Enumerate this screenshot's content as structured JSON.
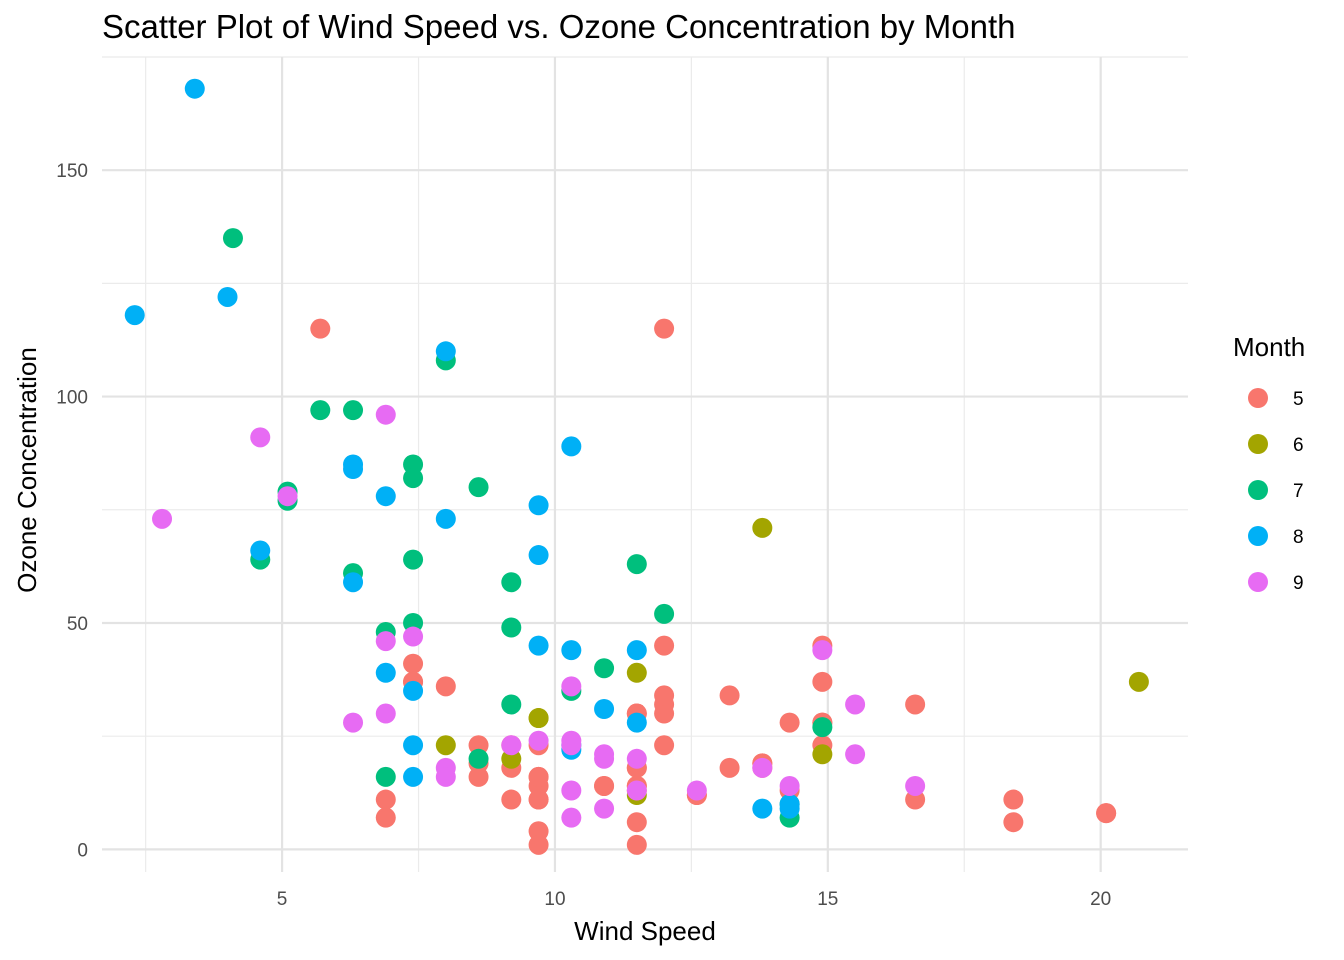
{
  "chart_data": {
    "type": "scatter",
    "title": "Scatter Plot of Wind Speed vs. Ozone Concentration by Month",
    "xlabel": "Wind Speed",
    "ylabel": "Ozone Concentration",
    "xlim": [
      1.7,
      21.6
    ],
    "ylim": [
      -5,
      175
    ],
    "x_ticks": [
      5,
      10,
      15,
      20
    ],
    "y_ticks": [
      0,
      50,
      100,
      150
    ],
    "grid": true,
    "legend": {
      "title": "Month",
      "position": "right"
    },
    "series": [
      {
        "name": "5",
        "color": "#F8766D",
        "points": [
          [
            7.4,
            41
          ],
          [
            8.0,
            36
          ],
          [
            12.6,
            12
          ],
          [
            11.5,
            18
          ],
          [
            14.3,
            28
          ],
          [
            14.9,
            23
          ],
          [
            8.6,
            19
          ],
          [
            13.8,
            19
          ],
          [
            20.1,
            8
          ],
          [
            8.6,
            16
          ],
          [
            6.9,
            11
          ],
          [
            9.7,
            14
          ],
          [
            9.2,
            18
          ],
          [
            10.9,
            14
          ],
          [
            13.2,
            34
          ],
          [
            11.5,
            6
          ],
          [
            12.0,
            30
          ],
          [
            18.4,
            11
          ],
          [
            11.5,
            1
          ],
          [
            9.7,
            11
          ],
          [
            9.7,
            4
          ],
          [
            16.6,
            32
          ],
          [
            9.7,
            23
          ],
          [
            12.0,
            45
          ],
          [
            12.0,
            115
          ],
          [
            14.9,
            37
          ],
          [
            5.7,
            115
          ],
          [
            7.4,
            37
          ],
          [
            9.7,
            16
          ],
          [
            8.6,
            23
          ],
          [
            13.8,
            18
          ],
          [
            11.5,
            14
          ],
          [
            9.7,
            1
          ],
          [
            11.5,
            30
          ],
          [
            13.8,
            19
          ],
          [
            14.9,
            45
          ],
          [
            14.9,
            28
          ],
          [
            9.7,
            11
          ],
          [
            12.0,
            32
          ],
          [
            12.0,
            34
          ],
          [
            18.4,
            6
          ],
          [
            20.1,
            8
          ],
          [
            16.6,
            11
          ],
          [
            9.2,
            11
          ],
          [
            10.9,
            14
          ],
          [
            12.6,
            12
          ],
          [
            13.2,
            18
          ],
          [
            7.4,
            37
          ],
          [
            11.5,
            30
          ],
          [
            11.5,
            13
          ],
          [
            11.5,
            14
          ],
          [
            12.0,
            23
          ],
          [
            6.9,
            7
          ],
          [
            14.9,
            28
          ],
          [
            11.5,
            18
          ],
          [
            14.3,
            13
          ],
          [
            9.7,
            16
          ],
          [
            9.2,
            23
          ]
        ]
      },
      {
        "name": "6",
        "color": "#A3A500",
        "points": [
          [
            13.8,
            71
          ],
          [
            11.5,
            39
          ],
          [
            9.7,
            29
          ],
          [
            8.0,
            23
          ],
          [
            11.5,
            12
          ],
          [
            14.9,
            21
          ],
          [
            20.7,
            37
          ],
          [
            9.2,
            20
          ],
          [
            9.7,
            29
          ]
        ]
      },
      {
        "name": "7",
        "color": "#00BF7D",
        "points": [
          [
            4.1,
            135
          ],
          [
            8.0,
            108
          ],
          [
            5.7,
            97
          ],
          [
            6.3,
            97
          ],
          [
            7.4,
            85
          ],
          [
            8.6,
            80
          ],
          [
            5.1,
            79
          ],
          [
            5.1,
            77
          ],
          [
            7.4,
            82
          ],
          [
            4.6,
            64
          ],
          [
            7.4,
            64
          ],
          [
            11.5,
            63
          ],
          [
            6.3,
            61
          ],
          [
            9.2,
            59
          ],
          [
            12.0,
            52
          ],
          [
            7.4,
            50
          ],
          [
            9.2,
            49
          ],
          [
            6.9,
            48
          ],
          [
            10.9,
            40
          ],
          [
            10.3,
            35
          ],
          [
            9.2,
            32
          ],
          [
            14.9,
            27
          ],
          [
            8.6,
            20
          ],
          [
            6.9,
            16
          ],
          [
            14.3,
            10
          ],
          [
            14.3,
            7
          ]
        ]
      },
      {
        "name": "8",
        "color": "#00B0F6",
        "points": [
          [
            3.4,
            168
          ],
          [
            2.3,
            118
          ],
          [
            4.0,
            122
          ],
          [
            8.0,
            110
          ],
          [
            10.3,
            89
          ],
          [
            6.3,
            85
          ],
          [
            6.3,
            84
          ],
          [
            6.9,
            78
          ],
          [
            9.7,
            76
          ],
          [
            8.0,
            73
          ],
          [
            4.6,
            66
          ],
          [
            9.7,
            65
          ],
          [
            6.3,
            59
          ],
          [
            9.7,
            45
          ],
          [
            10.3,
            44
          ],
          [
            11.5,
            44
          ],
          [
            6.9,
            39
          ],
          [
            7.4,
            35
          ],
          [
            10.9,
            31
          ],
          [
            11.5,
            28
          ],
          [
            7.4,
            23
          ],
          [
            10.3,
            22
          ],
          [
            7.4,
            16
          ],
          [
            13.8,
            9
          ],
          [
            14.3,
            9
          ],
          [
            14.3,
            10
          ],
          [
            10.3,
            23
          ]
        ]
      },
      {
        "name": "9",
        "color": "#E76BF3",
        "points": [
          [
            6.9,
            96
          ],
          [
            4.6,
            91
          ],
          [
            2.8,
            73
          ],
          [
            5.1,
            78
          ],
          [
            6.9,
            46
          ],
          [
            7.4,
            47
          ],
          [
            10.3,
            36
          ],
          [
            6.9,
            30
          ],
          [
            6.3,
            28
          ],
          [
            15.5,
            32
          ],
          [
            14.9,
            44
          ],
          [
            9.7,
            24
          ],
          [
            10.3,
            24
          ],
          [
            10.3,
            23
          ],
          [
            9.2,
            23
          ],
          [
            10.9,
            21
          ],
          [
            15.5,
            21
          ],
          [
            10.9,
            20
          ],
          [
            11.5,
            20
          ],
          [
            8.0,
            18
          ],
          [
            13.8,
            18
          ],
          [
            8.0,
            16
          ],
          [
            16.6,
            14
          ],
          [
            14.3,
            14
          ],
          [
            10.3,
            13
          ],
          [
            11.5,
            13
          ],
          [
            12.6,
            13
          ],
          [
            10.9,
            9
          ],
          [
            10.3,
            7
          ]
        ]
      }
    ]
  }
}
